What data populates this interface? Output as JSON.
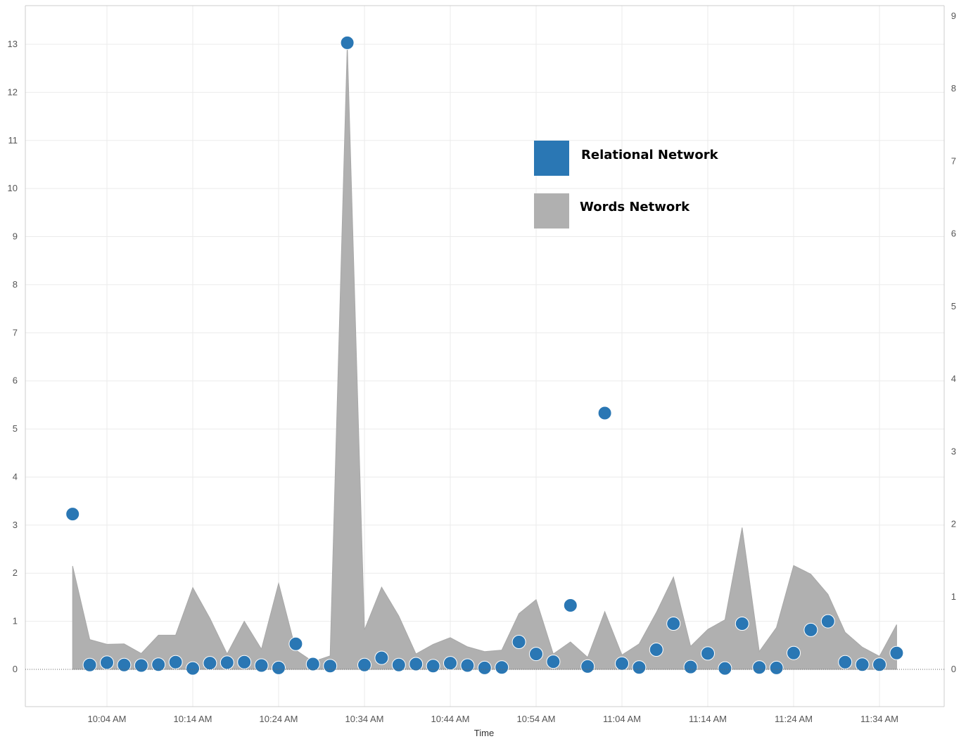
{
  "chart_data": {
    "type": "area",
    "title": "",
    "xlabel": "Time",
    "ylabel": "",
    "x_tick_labels": [
      "10:04 AM",
      "10:14 AM",
      "10:24 AM",
      "10:34 AM",
      "10:44 AM",
      "10:54 AM",
      "11:04 AM",
      "11:14 AM",
      "11:24 AM",
      "11:34 AM"
    ],
    "x_tick_minutes": [
      604,
      614,
      624,
      634,
      644,
      654,
      664,
      674,
      684,
      694
    ],
    "y_left_ticks": [
      0,
      1,
      2,
      3,
      4,
      5,
      6,
      7,
      8,
      9,
      10,
      11,
      12,
      13
    ],
    "y_right_ticks": [
      0,
      1,
      2,
      3,
      4,
      5,
      6,
      7,
      8,
      9
    ],
    "y_left_range": [
      -0.8,
      13.8
    ],
    "y_right_range": [
      -0.53,
      9.2
    ],
    "grid": true,
    "legend_position": "upper-middle-right",
    "colors": {
      "relational": "#2a77b4",
      "words": "#b0b0b0",
      "grid": "#ebebeb",
      "axis": "#cccccc"
    },
    "legend": [
      {
        "label": "Relational Network",
        "color": "#2a77b4"
      },
      {
        "label": "Words Network",
        "color": "#b0b0b0"
      }
    ],
    "series": [
      {
        "name": "Relational Network",
        "kind": "scatter",
        "axis": "left",
        "x": [
          600,
          602,
          604,
          606,
          608,
          610,
          612,
          614,
          616,
          618,
          620,
          622,
          624,
          626,
          628,
          630,
          632,
          634,
          636,
          638,
          640,
          642,
          644,
          646,
          648,
          650,
          652,
          654,
          656,
          658,
          660,
          662,
          664,
          666,
          668,
          670,
          672,
          674,
          676,
          678,
          680,
          682,
          684,
          686,
          688,
          690,
          692,
          694,
          696
        ],
        "y": [
          3.23,
          0.09,
          0.14,
          0.09,
          0.08,
          0.1,
          0.15,
          0.02,
          0.13,
          0.14,
          0.15,
          0.08,
          0.03,
          0.53,
          0.11,
          0.07,
          13.03,
          0.09,
          0.24,
          0.09,
          0.11,
          0.07,
          0.13,
          0.08,
          0.03,
          0.04,
          0.57,
          0.32,
          0.16,
          1.33,
          0.06,
          5.33,
          0.12,
          0.04,
          0.41,
          0.95,
          0.05,
          0.33,
          0.02,
          0.95,
          0.04,
          0.03,
          0.34,
          0.82,
          1.0,
          0.15,
          0.1,
          0.1,
          0.34
        ]
      },
      {
        "name": "Words Network",
        "kind": "area",
        "axis": "left",
        "x": [
          600,
          602,
          604,
          606,
          608,
          610,
          612,
          614,
          616,
          618,
          620,
          622,
          624,
          626,
          628,
          630,
          632,
          634,
          636,
          638,
          640,
          642,
          644,
          646,
          648,
          650,
          652,
          654,
          656,
          658,
          660,
          662,
          664,
          666,
          668,
          670,
          672,
          674,
          676,
          678,
          680,
          682,
          684,
          686,
          688,
          690,
          692,
          694,
          696
        ],
        "y": [
          2.15,
          0.62,
          0.52,
          0.53,
          0.33,
          0.71,
          0.71,
          1.7,
          1.06,
          0.32,
          1.0,
          0.42,
          1.79,
          0.4,
          0.16,
          0.28,
          13.0,
          0.82,
          1.71,
          1.11,
          0.32,
          0.52,
          0.66,
          0.47,
          0.37,
          0.4,
          1.16,
          1.45,
          0.32,
          0.57,
          0.25,
          1.2,
          0.3,
          0.53,
          1.18,
          1.92,
          0.48,
          0.83,
          1.03,
          2.95,
          0.37,
          0.87,
          2.16,
          1.98,
          1.56,
          0.77,
          0.46,
          0.27,
          0.93
        ]
      }
    ]
  }
}
